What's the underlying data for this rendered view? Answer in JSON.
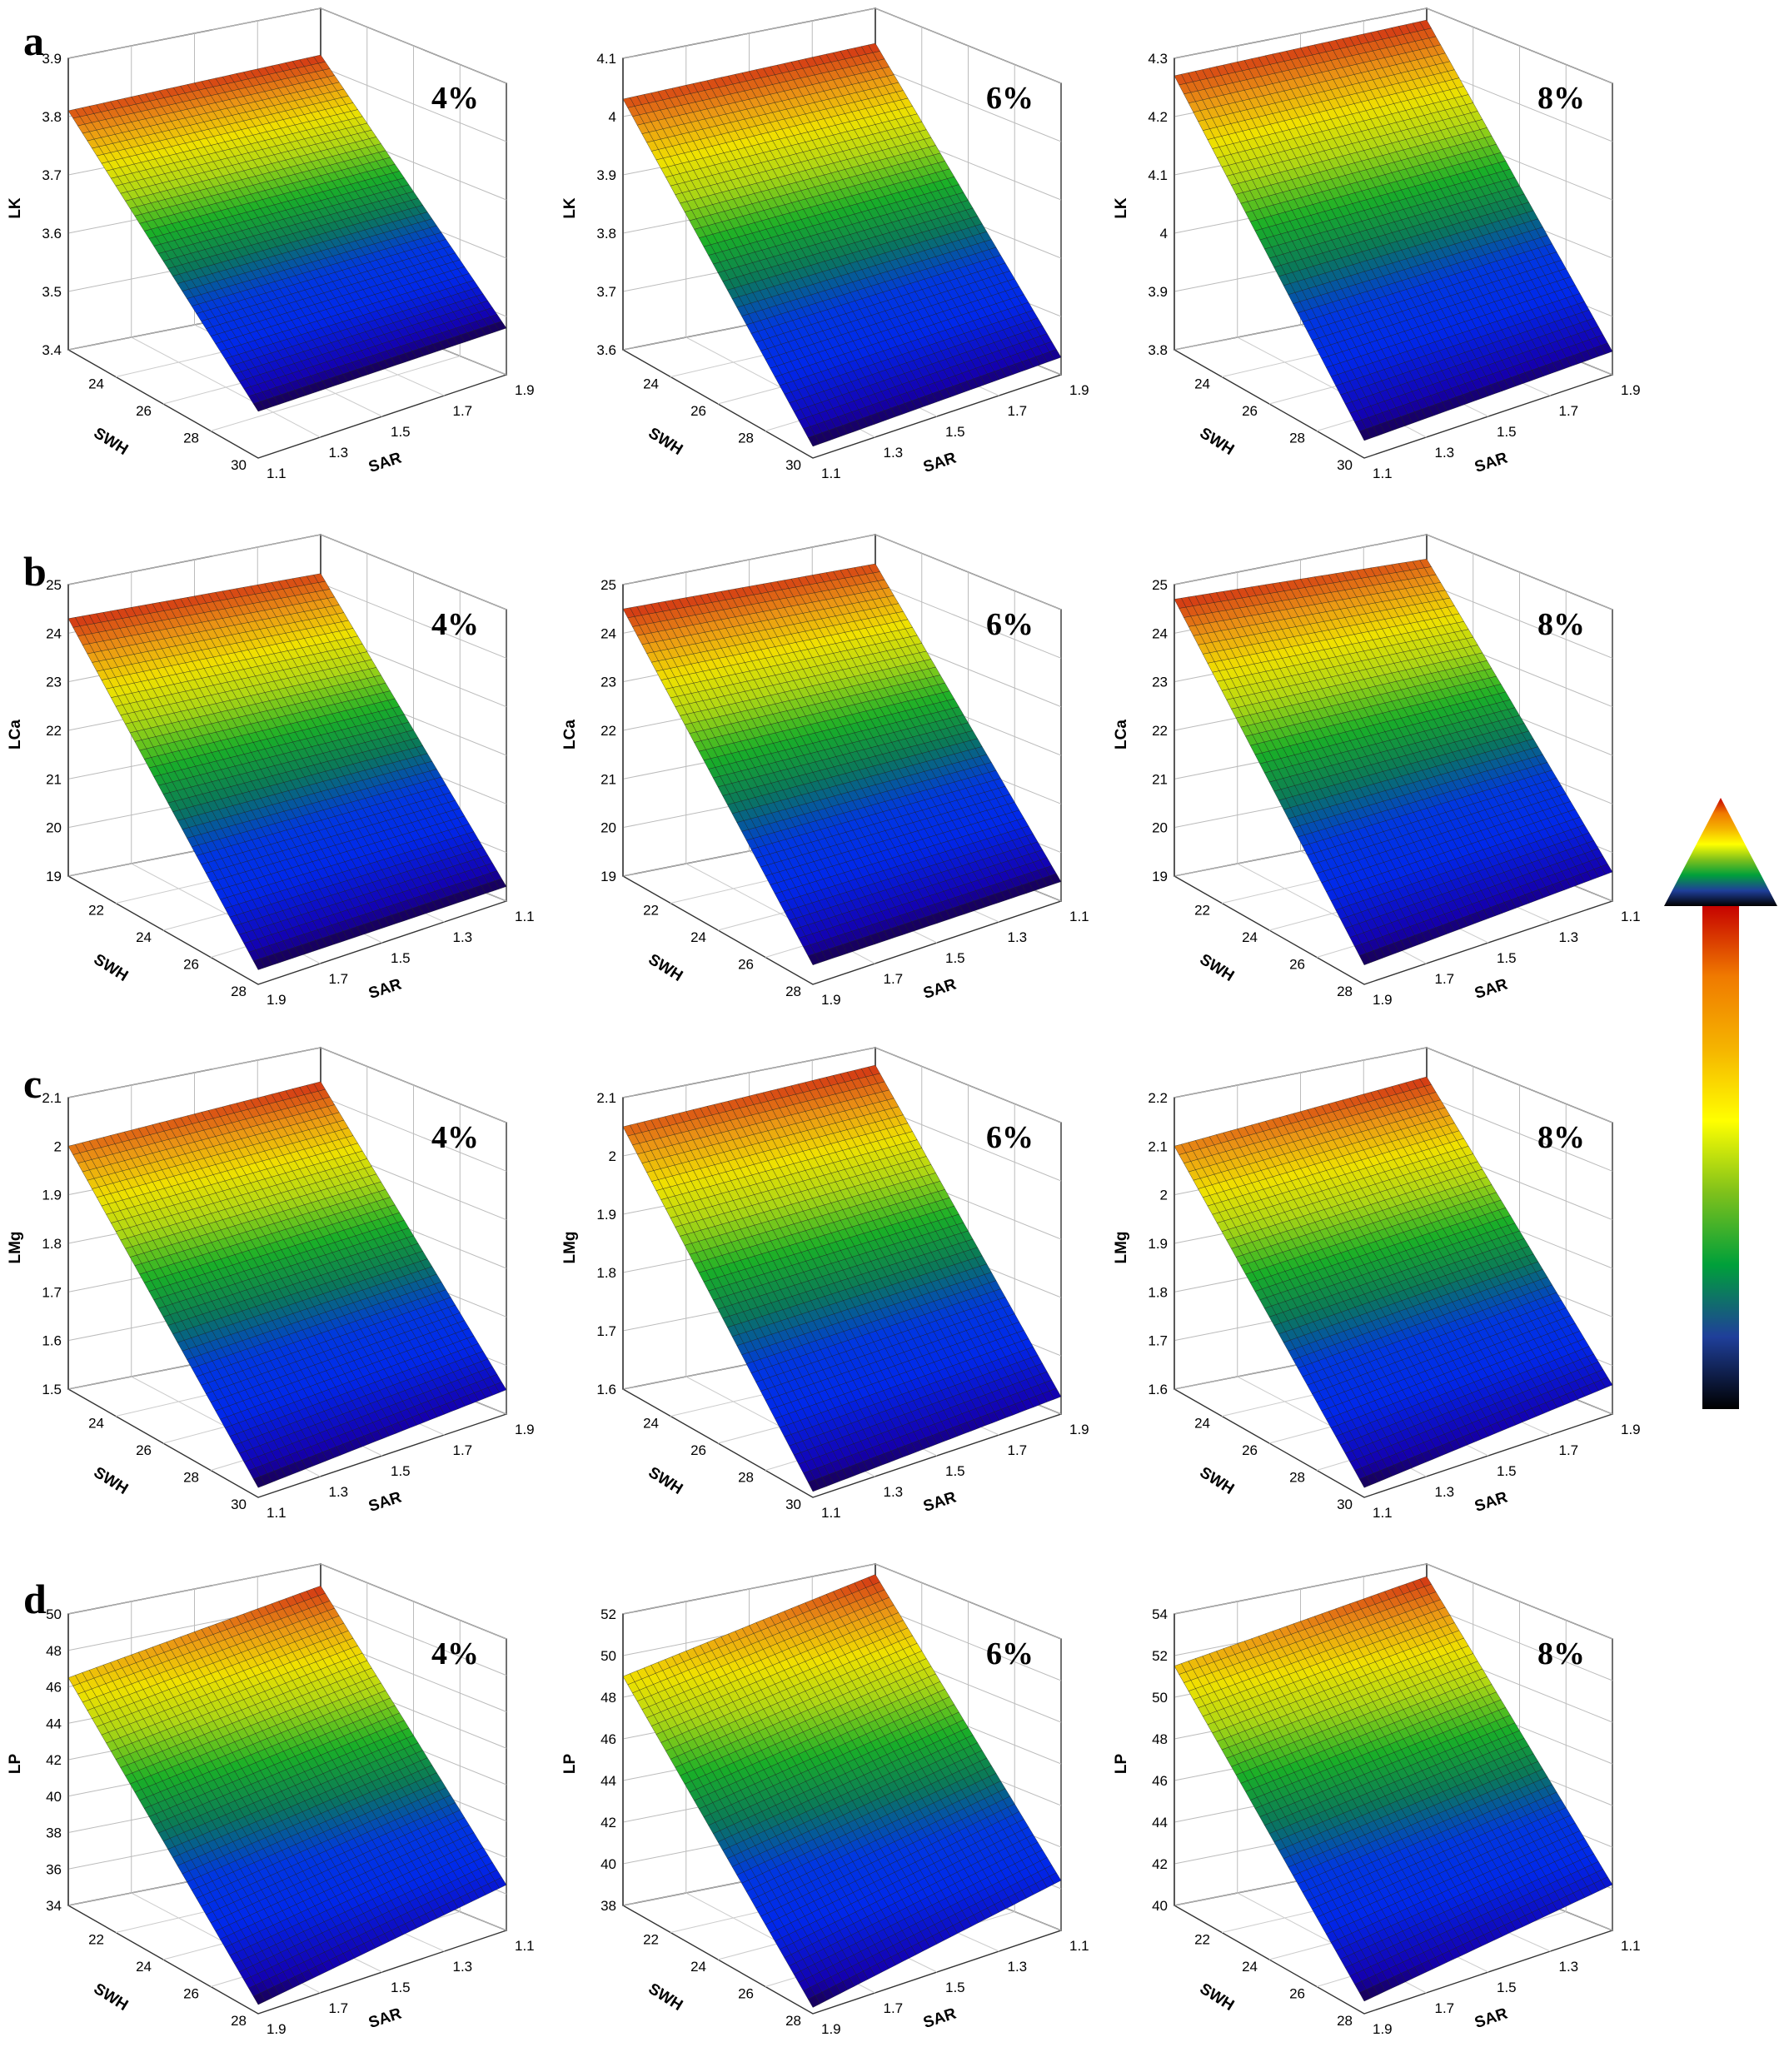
{
  "figure": {
    "rows": [
      {
        "letter": "a"
      },
      {
        "letter": "b"
      },
      {
        "letter": "c"
      },
      {
        "letter": "d"
      }
    ],
    "legend": {
      "type": "color-scale-arrow",
      "colors": [
        "#000000",
        "#1f3f9a",
        "#00a03a",
        "#7fc11b",
        "#ffff00",
        "#f5b400",
        "#f07a00",
        "#c50000"
      ]
    }
  },
  "chart_data": [
    {
      "type": "surface",
      "panel": "a",
      "title": "4%",
      "zlabel": "LK",
      "xlabel": "SAR",
      "ylabel": "SWH",
      "zticks": [
        3.4,
        3.5,
        3.6,
        3.7,
        3.8,
        3.9
      ],
      "zlim": [
        3.4,
        3.9
      ],
      "xticks": [
        1.1,
        1.3,
        1.5,
        1.7,
        1.9
      ],
      "yticks": [
        24,
        26,
        28,
        30
      ],
      "xlim": [
        1.1,
        1.9
      ],
      "ylim": [
        22,
        30
      ],
      "corners": {
        "front": 3.48,
        "right": 3.48,
        "left": 3.81,
        "back": 3.82
      }
    },
    {
      "type": "surface",
      "panel": "a",
      "title": "6%",
      "zlabel": "LK",
      "xlabel": "SAR",
      "ylabel": "SWH",
      "zticks": [
        3.6,
        3.7,
        3.8,
        3.9,
        4.0,
        4.1
      ],
      "zlim": [
        3.6,
        4.1
      ],
      "xticks": [
        1.1,
        1.3,
        1.5,
        1.7,
        1.9
      ],
      "yticks": [
        24,
        26,
        28,
        30
      ],
      "xlim": [
        1.1,
        1.9
      ],
      "ylim": [
        22,
        30
      ],
      "corners": {
        "front": 3.62,
        "right": 3.63,
        "left": 4.03,
        "back": 4.04
      }
    },
    {
      "type": "surface",
      "panel": "a",
      "title": "8%",
      "zlabel": "LK",
      "xlabel": "SAR",
      "ylabel": "SWH",
      "zticks": [
        3.8,
        3.9,
        4.0,
        4.1,
        4.2,
        4.3
      ],
      "zlim": [
        3.8,
        4.3
      ],
      "xticks": [
        1.1,
        1.3,
        1.5,
        1.7,
        1.9
      ],
      "yticks": [
        24,
        26,
        28,
        30
      ],
      "xlim": [
        1.1,
        1.9
      ],
      "ylim": [
        22,
        30
      ],
      "corners": {
        "front": 3.83,
        "right": 3.84,
        "left": 4.27,
        "back": 4.28
      }
    },
    {
      "type": "surface",
      "panel": "b",
      "title": "4%",
      "zlabel": "LCa",
      "xlabel": "SAR",
      "ylabel": "SWH",
      "zticks": [
        19,
        20,
        21,
        22,
        23,
        24,
        25
      ],
      "zlim": [
        19,
        25
      ],
      "xticks": [
        1.9,
        1.7,
        1.5,
        1.3,
        1.1
      ],
      "yticks": [
        22,
        24,
        26,
        28
      ],
      "xlim": [
        1.9,
        1.1
      ],
      "ylim": [
        30,
        22
      ],
      "corners": {
        "front": 19.3,
        "right": 19.3,
        "left": 24.3,
        "back": 24.2
      }
    },
    {
      "type": "surface",
      "panel": "b",
      "title": "6%",
      "zlabel": "LCa",
      "xlabel": "SAR",
      "ylabel": "SWH",
      "zticks": [
        19,
        20,
        21,
        22,
        23,
        24,
        25
      ],
      "zlim": [
        19,
        25
      ],
      "xticks": [
        1.9,
        1.7,
        1.5,
        1.3,
        1.1
      ],
      "yticks": [
        22,
        24,
        26,
        28
      ],
      "xlim": [
        1.9,
        1.1
      ],
      "ylim": [
        30,
        22
      ],
      "corners": {
        "front": 19.4,
        "right": 19.4,
        "left": 24.5,
        "back": 24.4
      }
    },
    {
      "type": "surface",
      "panel": "b",
      "title": "8%",
      "zlabel": "LCa",
      "xlabel": "SAR",
      "ylabel": "SWH",
      "zticks": [
        19,
        20,
        21,
        22,
        23,
        24,
        25
      ],
      "zlim": [
        19,
        25
      ],
      "xticks": [
        1.9,
        1.7,
        1.5,
        1.3,
        1.1
      ],
      "yticks": [
        22,
        24,
        26,
        28
      ],
      "xlim": [
        1.9,
        1.1
      ],
      "ylim": [
        30,
        22
      ],
      "corners": {
        "front": 19.4,
        "right": 19.6,
        "left": 24.7,
        "back": 24.5
      }
    },
    {
      "type": "surface",
      "panel": "c",
      "title": "4%",
      "zlabel": "LMg",
      "xlabel": "SAR",
      "ylabel": "SWH",
      "zticks": [
        1.5,
        1.6,
        1.7,
        1.8,
        1.9,
        2.0,
        2.1
      ],
      "zlim": [
        1.5,
        2.1
      ],
      "xticks": [
        1.1,
        1.3,
        1.5,
        1.7,
        1.9
      ],
      "yticks": [
        24,
        26,
        28,
        30
      ],
      "xlim": [
        1.1,
        1.9
      ],
      "ylim": [
        22,
        30
      ],
      "corners": {
        "front": 1.52,
        "right": 1.55,
        "left": 2.0,
        "back": 2.03
      }
    },
    {
      "type": "surface",
      "panel": "c",
      "title": "6%",
      "zlabel": "LMg",
      "xlabel": "SAR",
      "ylabel": "SWH",
      "zticks": [
        1.6,
        1.7,
        1.8,
        1.9,
        2.0,
        2.1
      ],
      "zlim": [
        1.6,
        2.1
      ],
      "xticks": [
        1.1,
        1.3,
        1.5,
        1.7,
        1.9
      ],
      "yticks": [
        24,
        26,
        28,
        30
      ],
      "xlim": [
        1.1,
        1.9
      ],
      "ylim": [
        22,
        30
      ],
      "corners": {
        "front": 1.61,
        "right": 1.63,
        "left": 2.05,
        "back": 2.07
      }
    },
    {
      "type": "surface",
      "panel": "c",
      "title": "8%",
      "zlabel": "LMg",
      "xlabel": "SAR",
      "ylabel": "SWH",
      "zticks": [
        1.6,
        1.7,
        1.8,
        1.9,
        2.0,
        2.1,
        2.2
      ],
      "zlim": [
        1.6,
        2.2
      ],
      "xticks": [
        1.1,
        1.3,
        1.5,
        1.7,
        1.9
      ],
      "yticks": [
        24,
        26,
        28,
        30
      ],
      "xlim": [
        1.1,
        1.9
      ],
      "ylim": [
        22,
        30
      ],
      "corners": {
        "front": 1.62,
        "right": 1.66,
        "left": 2.1,
        "back": 2.14
      }
    },
    {
      "type": "surface",
      "panel": "d",
      "title": "4%",
      "zlabel": "LP",
      "xlabel": "SAR",
      "ylabel": "SWH",
      "zticks": [
        34,
        36,
        38,
        40,
        42,
        44,
        46,
        48,
        50
      ],
      "zlim": [
        34,
        50
      ],
      "xticks": [
        1.9,
        1.7,
        1.5,
        1.3,
        1.1
      ],
      "yticks": [
        22,
        24,
        26,
        28
      ],
      "xlim": [
        1.9,
        1.1
      ],
      "ylim": [
        30,
        22
      ],
      "corners": {
        "front": 34.5,
        "right": 36.5,
        "left": 46.5,
        "back": 48.8
      }
    },
    {
      "type": "surface",
      "panel": "d",
      "title": "6%",
      "zlabel": "LP",
      "xlabel": "SAR",
      "ylabel": "SWH",
      "zticks": [
        38,
        40,
        42,
        44,
        46,
        48,
        50,
        52
      ],
      "zlim": [
        38,
        52
      ],
      "xticks": [
        1.9,
        1.7,
        1.5,
        1.3,
        1.1
      ],
      "yticks": [
        22,
        24,
        26,
        28
      ],
      "xlim": [
        1.9,
        1.1
      ],
      "ylim": [
        30,
        22
      ],
      "corners": {
        "front": 38.3,
        "right": 40.4,
        "left": 49.0,
        "back": 51.5
      }
    },
    {
      "type": "surface",
      "panel": "d",
      "title": "8%",
      "zlabel": "LP",
      "xlabel": "SAR",
      "ylabel": "SWH",
      "zticks": [
        40,
        42,
        44,
        46,
        48,
        50,
        52,
        54
      ],
      "zlim": [
        40,
        54
      ],
      "xticks": [
        1.9,
        1.7,
        1.5,
        1.3,
        1.1
      ],
      "yticks": [
        22,
        24,
        26,
        28
      ],
      "xlim": [
        1.9,
        1.1
      ],
      "ylim": [
        30,
        22
      ],
      "corners": {
        "front": 40.6,
        "right": 42.2,
        "left": 51.5,
        "back": 53.4
      }
    }
  ]
}
